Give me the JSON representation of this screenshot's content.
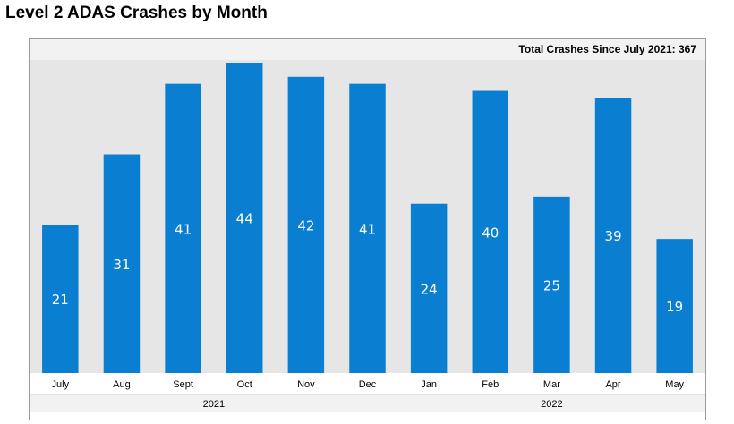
{
  "title": "Level 2 ADAS Crashes by Month",
  "total": {
    "label": "Total Crashes Since July 2021:",
    "value": "367"
  },
  "colors": {
    "bar": "#0a7fd2",
    "plot_bg": "#e6e6e6",
    "label_text": "#ffffff",
    "axis_text": "#000000",
    "band": "#f2f2f2"
  },
  "chart_data": {
    "type": "bar",
    "title": "Level 2 ADAS Crashes by Month",
    "annotation": "Total Crashes Since July 2021: 367",
    "categories": [
      "July",
      "Aug",
      "Sept",
      "Oct",
      "Nov",
      "Dec",
      "Jan",
      "Feb",
      "Mar",
      "Apr",
      "May"
    ],
    "values": [
      21,
      31,
      41,
      44,
      42,
      41,
      24,
      40,
      25,
      39,
      19
    ],
    "years": [
      {
        "label": "2021",
        "start": 0,
        "end": 5
      },
      {
        "label": "2022",
        "start": 6,
        "end": 10
      }
    ],
    "xlabel": "",
    "ylabel": "",
    "ylim": [
      0,
      44
    ],
    "grid": false,
    "legend": "none"
  }
}
